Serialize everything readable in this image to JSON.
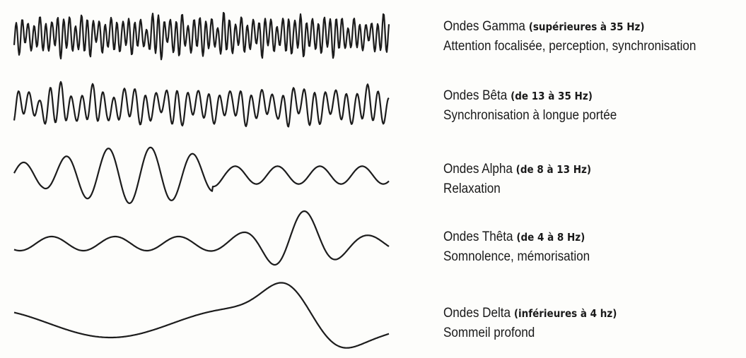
{
  "waves": [
    {
      "name": "Ondes Gamma",
      "range": "(supérieures à 35 Hz)",
      "description": "Attention focalisée, perception, synchronisation"
    },
    {
      "name": "Ondes Bêta",
      "range": "(de 13 à 35 Hz)",
      "description": "Synchronisation à longue portée"
    },
    {
      "name": "Ondes Alpha",
      "range": "(de 8 à 13 Hz)",
      "description": "Relaxation"
    },
    {
      "name": "Ondes Thêta",
      "range": "(de 4 à 8 Hz)",
      "description": "Somnolence, mémorisation"
    },
    {
      "name": "Ondes Delta",
      "range": "(inférieures à 4 hz)",
      "description": "Sommeil profond"
    }
  ]
}
